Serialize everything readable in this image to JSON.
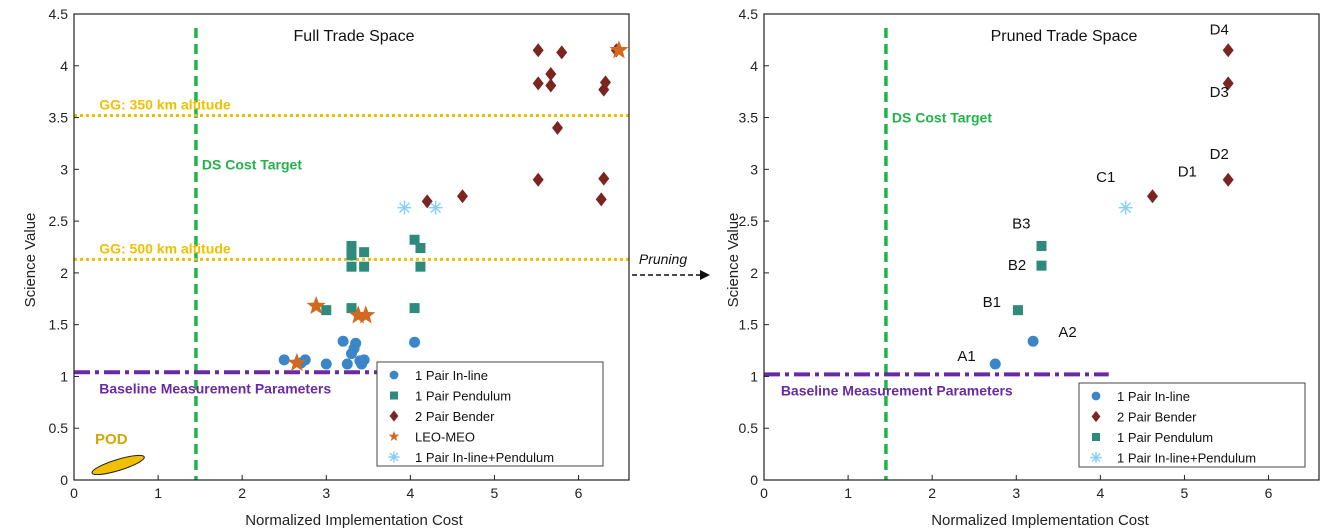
{
  "chart_data": [
    {
      "type": "scatter",
      "title": "Full Trade Space",
      "xlabel": "Normalized Implementation Cost",
      "ylabel": "Science Value",
      "xlim": [
        0,
        6.6
      ],
      "ylim": [
        0,
        4.5
      ],
      "xticks": [
        "0",
        "1",
        "2",
        "3",
        "4",
        "5",
        "6"
      ],
      "yticks": [
        "0",
        "0.5",
        "1",
        "1.5",
        "2",
        "2.5",
        "3",
        "3.5",
        "4",
        "4.5"
      ],
      "grid": false,
      "legend_position": "bottom-right",
      "series": [
        {
          "name": "1 Pair In-line",
          "marker": "circle",
          "color": "#3a86c8",
          "points": [
            [
              2.5,
              1.16
            ],
            [
              2.7,
              1.13
            ],
            [
              2.75,
              1.16
            ],
            [
              3.0,
              1.12
            ],
            [
              3.2,
              1.34
            ],
            [
              3.25,
              1.12
            ],
            [
              3.3,
              1.22
            ],
            [
              3.33,
              1.27
            ],
            [
              3.35,
              1.32
            ],
            [
              3.4,
              1.15
            ],
            [
              3.42,
              1.12
            ],
            [
              3.45,
              1.16
            ],
            [
              4.05,
              1.33
            ]
          ]
        },
        {
          "name": "1 Pair Pendulum",
          "marker": "square",
          "color": "#2e8b7c",
          "points": [
            [
              3.0,
              1.64
            ],
            [
              3.3,
              1.66
            ],
            [
              3.3,
              2.06
            ],
            [
              3.3,
              2.17
            ],
            [
              3.3,
              2.26
            ],
            [
              3.45,
              2.06
            ],
            [
              3.45,
              2.2
            ],
            [
              4.05,
              1.66
            ],
            [
              4.05,
              2.32
            ],
            [
              4.12,
              2.06
            ],
            [
              4.12,
              2.24
            ]
          ]
        },
        {
          "name": "2 Pair Bender",
          "marker": "diamond",
          "color": "#7a2520",
          "points": [
            [
              4.2,
              2.69
            ],
            [
              4.62,
              2.74
            ],
            [
              5.52,
              2.9
            ],
            [
              5.52,
              3.83
            ],
            [
              5.52,
              4.15
            ],
            [
              5.67,
              3.81
            ],
            [
              5.67,
              3.92
            ],
            [
              5.75,
              3.4
            ],
            [
              5.8,
              4.13
            ],
            [
              6.27,
              2.71
            ],
            [
              6.3,
              2.91
            ],
            [
              6.3,
              3.77
            ],
            [
              6.32,
              3.84
            ],
            [
              6.45,
              4.15
            ]
          ]
        },
        {
          "name": "LEO-MEO",
          "marker": "star",
          "color": "#d2691e",
          "points": [
            [
              2.65,
              1.13
            ],
            [
              2.88,
              1.68
            ],
            [
              3.38,
              1.59
            ],
            [
              3.47,
              1.59
            ],
            [
              6.48,
              4.15
            ]
          ]
        },
        {
          "name": "1 Pair In-line+Pendulum",
          "marker": "asterisk",
          "color": "#87cefa",
          "points": [
            [
              3.93,
              2.63
            ],
            [
              4.3,
              2.63
            ]
          ]
        }
      ],
      "reference_lines": [
        {
          "orientation": "vertical",
          "x": 1.45,
          "style": "dashed",
          "color": "#22b34a",
          "label": "DS Cost Target"
        },
        {
          "orientation": "horizontal",
          "y": 3.52,
          "style": "dotted",
          "color": "#f0c000",
          "label": "GG: 350 km altitude"
        },
        {
          "orientation": "horizontal",
          "y": 2.13,
          "style": "dotted",
          "color": "#f0c000",
          "label": "GG: 500 km altitude"
        },
        {
          "orientation": "horizontal",
          "y": 1.04,
          "style": "dash-dot",
          "color": "#6b2aa5",
          "label": "Baseline Measurement Parameters"
        }
      ],
      "region": {
        "label": "POD",
        "color": "#f0c000",
        "x_range": [
          0.2,
          0.85
        ],
        "y_range": [
          0.07,
          0.22
        ]
      }
    },
    {
      "type": "scatter",
      "title": "Pruned Trade Space",
      "xlabel": "Normalized Implementation Cost",
      "ylabel": "Science Value",
      "xlim": [
        0,
        6.6
      ],
      "ylim": [
        0,
        4.5
      ],
      "xticks": [
        "0",
        "1",
        "2",
        "3",
        "4",
        "5",
        "6"
      ],
      "yticks": [
        "0",
        "0.5",
        "1",
        "1.5",
        "2",
        "2.5",
        "3",
        "3.5",
        "4",
        "4.5"
      ],
      "grid": false,
      "legend_position": "bottom-right",
      "series": [
        {
          "name": "1 Pair In-line",
          "marker": "circle",
          "color": "#3a86c8",
          "points": [
            [
              2.75,
              1.12
            ],
            [
              3.2,
              1.34
            ]
          ]
        },
        {
          "name": "2 Pair Bender",
          "marker": "diamond",
          "color": "#7a2520",
          "points": [
            [
              4.62,
              2.74
            ],
            [
              5.52,
              2.9
            ],
            [
              5.52,
              3.83
            ],
            [
              5.52,
              4.15
            ]
          ]
        },
        {
          "name": "1 Pair Pendulum",
          "marker": "square",
          "color": "#2e8b7c",
          "points": [
            [
              3.02,
              1.64
            ],
            [
              3.3,
              2.07
            ],
            [
              3.3,
              2.26
            ]
          ]
        },
        {
          "name": "1 Pair In-line+Pendulum",
          "marker": "asterisk",
          "color": "#87cefa",
          "points": [
            [
              4.3,
              2.63
            ]
          ]
        }
      ],
      "point_labels": [
        {
          "text": "A1",
          "x": 2.3,
          "y": 1.15
        },
        {
          "text": "A2",
          "x": 3.5,
          "y": 1.38
        },
        {
          "text": "B1",
          "x": 2.6,
          "y": 1.67
        },
        {
          "text": "B2",
          "x": 2.9,
          "y": 2.03
        },
        {
          "text": "B3",
          "x": 2.95,
          "y": 2.43
        },
        {
          "text": "C1",
          "x": 3.95,
          "y": 2.88
        },
        {
          "text": "D1",
          "x": 4.92,
          "y": 2.93
        },
        {
          "text": "D2",
          "x": 5.3,
          "y": 3.1
        },
        {
          "text": "D3",
          "x": 5.3,
          "y": 3.7
        },
        {
          "text": "D4",
          "x": 5.3,
          "y": 4.3
        }
      ],
      "reference_lines": [
        {
          "orientation": "vertical",
          "x": 1.45,
          "style": "dashed",
          "color": "#22b34a",
          "label": "DS Cost Target"
        },
        {
          "orientation": "horizontal",
          "y": 1.02,
          "style": "dash-dot",
          "color": "#6b2aa5",
          "label": "Baseline Measurement Parameters"
        }
      ]
    }
  ],
  "arrow_label": "Pruning"
}
